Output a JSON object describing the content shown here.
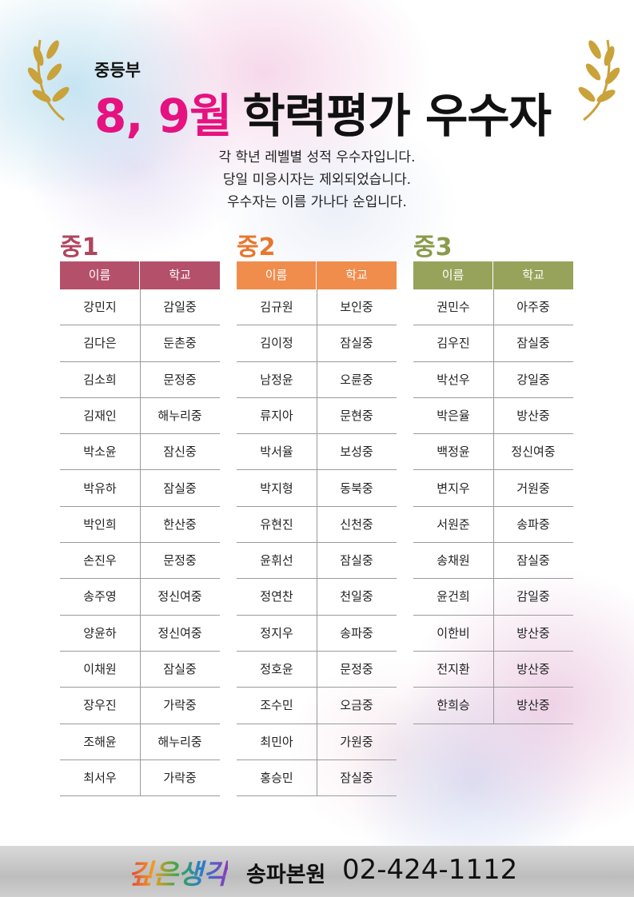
{
  "header": {
    "label": "중등부",
    "title_highlight": "8, 9월",
    "title_rest": "학력평가 우수자"
  },
  "intro": [
    "각 학년 레벨별 성적 우수자입니다.",
    "당일 미응시자는 제외되었습니다.",
    "우수자는 이름 가나다 순입니다."
  ],
  "tables": [
    {
      "title": "중1",
      "headers": [
        "이름",
        "학교"
      ],
      "rows": [
        [
          "강민지",
          "감일중"
        ],
        [
          "김다은",
          "둔촌중"
        ],
        [
          "김소희",
          "문정중"
        ],
        [
          "김재인",
          "해누리중"
        ],
        [
          "박소윤",
          "잠신중"
        ],
        [
          "박유하",
          "잠실중"
        ],
        [
          "박인희",
          "한산중"
        ],
        [
          "손진우",
          "문정중"
        ],
        [
          "송주영",
          "정신여중"
        ],
        [
          "양윤하",
          "정신여중"
        ],
        [
          "이채원",
          "잠실중"
        ],
        [
          "장우진",
          "가락중"
        ],
        [
          "조해윤",
          "해누리중"
        ],
        [
          "최서우",
          "가락중"
        ]
      ]
    },
    {
      "title": "중2",
      "headers": [
        "이름",
        "학교"
      ],
      "rows": [
        [
          "김규원",
          "보인중"
        ],
        [
          "김이정",
          "잠실중"
        ],
        [
          "남정윤",
          "오륜중"
        ],
        [
          "류지아",
          "문현중"
        ],
        [
          "박서율",
          "보성중"
        ],
        [
          "박지형",
          "동북중"
        ],
        [
          "유현진",
          "신천중"
        ],
        [
          "윤휘선",
          "잠실중"
        ],
        [
          "정연찬",
          "천일중"
        ],
        [
          "정지우",
          "송파중"
        ],
        [
          "정호윤",
          "문정중"
        ],
        [
          "조수민",
          "오금중"
        ],
        [
          "최민아",
          "가원중"
        ],
        [
          "홍승민",
          "잠실중"
        ]
      ]
    },
    {
      "title": "중3",
      "headers": [
        "이름",
        "학교"
      ],
      "rows": [
        [
          "권민수",
          "아주중"
        ],
        [
          "김우진",
          "잠실중"
        ],
        [
          "박선우",
          "강일중"
        ],
        [
          "박은율",
          "방산중"
        ],
        [
          "백정윤",
          "정신여중"
        ],
        [
          "변지우",
          "거원중"
        ],
        [
          "서원준",
          "송파중"
        ],
        [
          "송채원",
          "잠실중"
        ],
        [
          "윤건희",
          "감일중"
        ],
        [
          "이한비",
          "방산중"
        ],
        [
          "전지환",
          "방산중"
        ],
        [
          "한희승",
          "방산중"
        ]
      ]
    }
  ],
  "footer": {
    "brand": "깊은생각",
    "branch": "송파본원",
    "phone": "02-424-1112"
  }
}
